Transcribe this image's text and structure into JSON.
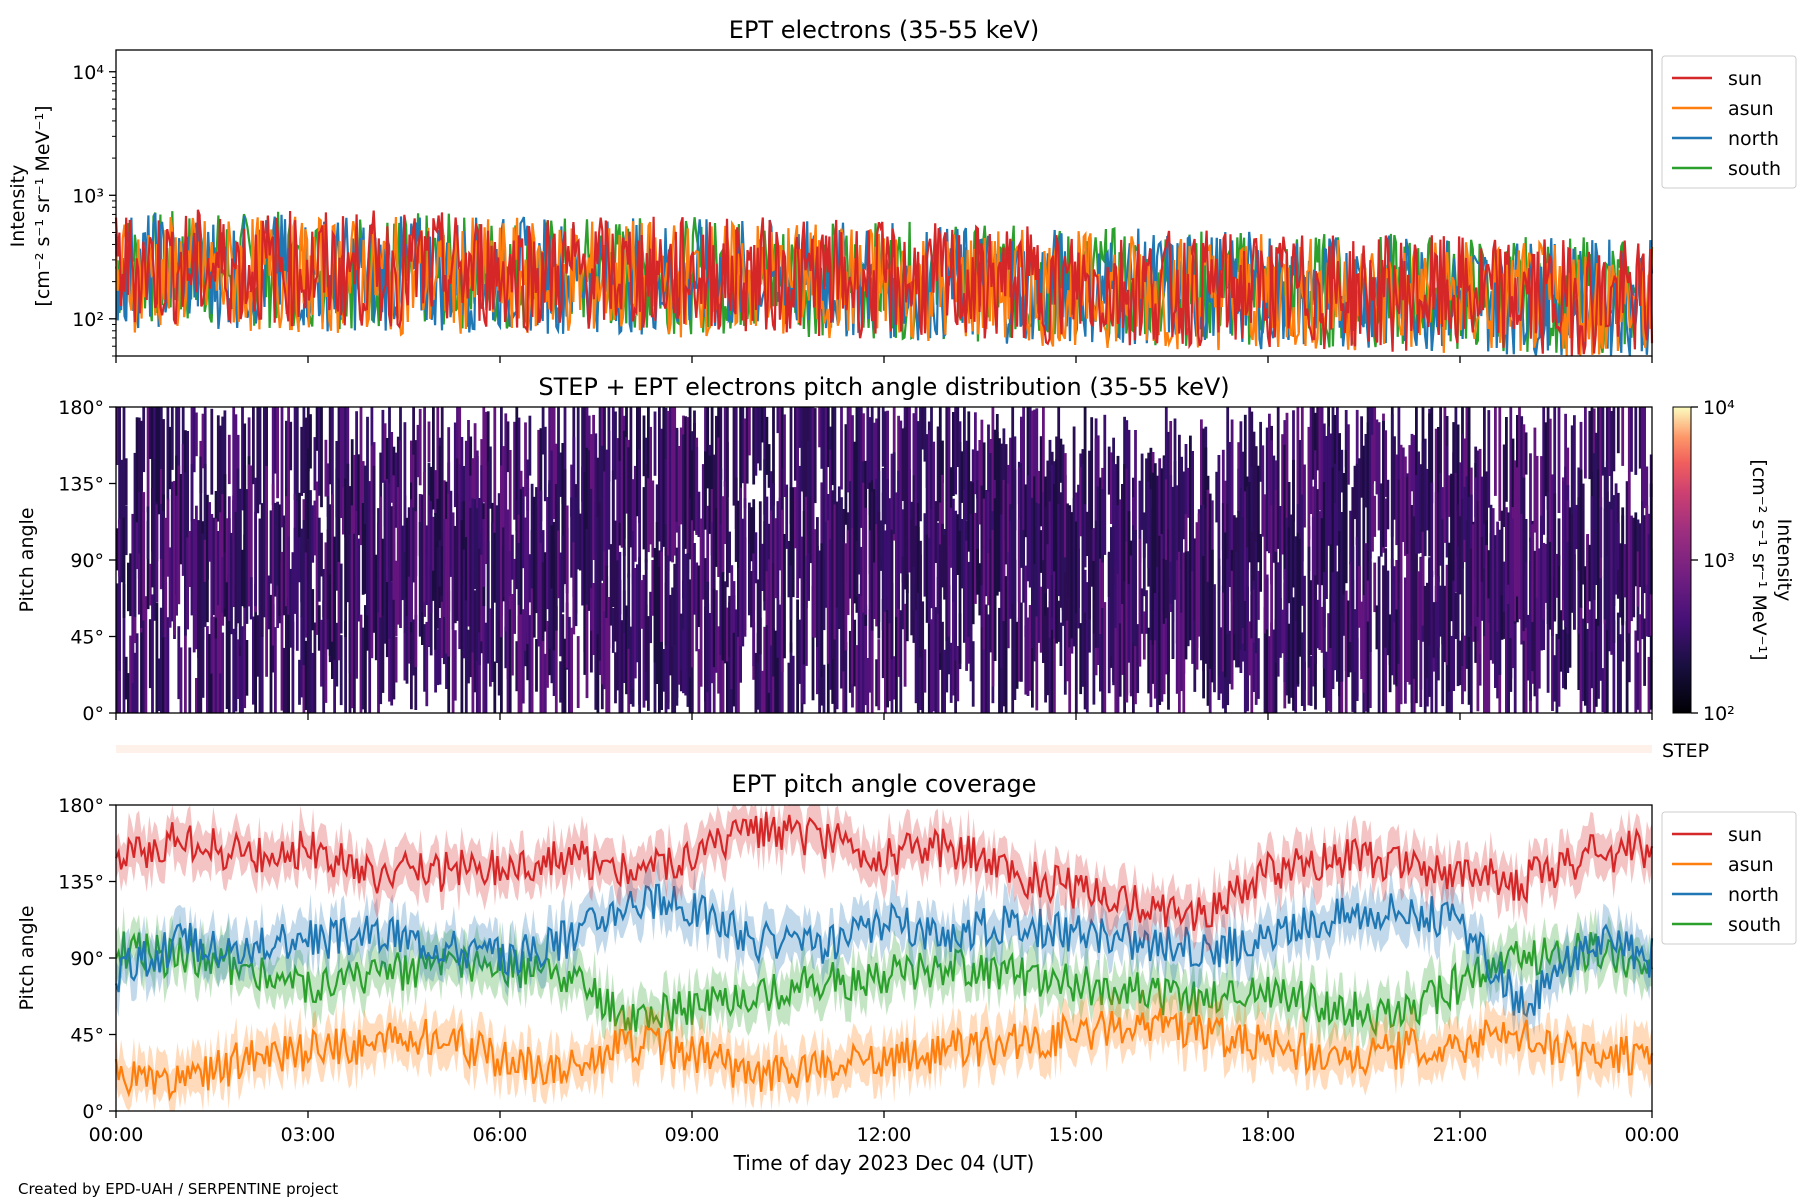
{
  "colors": {
    "sun": "#d62728",
    "asun": "#ff7f0e",
    "north": "#1f77b4",
    "south": "#2ca02c"
  },
  "legend": [
    "sun",
    "asun",
    "north",
    "south"
  ],
  "x_axis": {
    "xlabel": "Time of day 2023 Dec 04 (UT)",
    "tick_labels": [
      "00:00",
      "03:00",
      "06:00",
      "09:00",
      "12:00",
      "15:00",
      "18:00",
      "21:00",
      "00:00"
    ]
  },
  "step_label": "STEP",
  "credit": "Created by EPD-UAH / SERPENTINE project",
  "chart_data": [
    {
      "type": "line",
      "title": "EPT electrons (35-55 keV)",
      "ylabel_line1": "Intensity",
      "ylabel_line2": "[cm⁻² s⁻¹ sr⁻¹ MeV⁻¹]",
      "yscale": "log",
      "ylim": [
        50,
        15000
      ],
      "y_tick_labels": [
        "10²",
        "10³",
        "10⁴"
      ],
      "xlim_hours": [
        0,
        24
      ],
      "series": [
        {
          "name": "sun",
          "x_hours": [
            0,
            2,
            4,
            6,
            8,
            10,
            12,
            14,
            16,
            18,
            20,
            22,
            24
          ],
          "y": [
            300,
            290,
            280,
            270,
            260,
            250,
            230,
            210,
            200,
            190,
            180,
            170,
            160
          ]
        },
        {
          "name": "asun",
          "x_hours": [
            0,
            2,
            4,
            6,
            8,
            10,
            12,
            14,
            16,
            18,
            20,
            22,
            24
          ],
          "y": [
            260,
            255,
            250,
            245,
            240,
            230,
            220,
            200,
            190,
            180,
            170,
            160,
            150
          ]
        },
        {
          "name": "north",
          "x_hours": [
            0,
            2,
            4,
            6,
            8,
            10,
            12,
            14,
            16,
            18,
            20,
            22,
            24
          ],
          "y": [
            280,
            270,
            260,
            255,
            250,
            240,
            225,
            210,
            200,
            190,
            180,
            170,
            165
          ]
        },
        {
          "name": "south",
          "x_hours": [
            0,
            2,
            4,
            6,
            8,
            10,
            12,
            14,
            16,
            18,
            20,
            22,
            24
          ],
          "y": [
            290,
            280,
            275,
            265,
            255,
            245,
            230,
            215,
            205,
            195,
            185,
            175,
            170
          ]
        }
      ]
    },
    {
      "type": "heatmap",
      "title": "STEP + EPT electrons pitch angle distribution (35-55 keV)",
      "ylabel": "Pitch angle",
      "ylim": [
        0,
        180
      ],
      "y_tick_labels": [
        "0°",
        "45°",
        "90°",
        "135°",
        "180°"
      ],
      "xlim_hours": [
        0,
        24
      ],
      "colorbar": {
        "label_line1": "Intensity",
        "label_line2": "[cm⁻² s⁻¹ sr⁻¹ MeV⁻¹]",
        "scale": "log",
        "range": [
          100,
          10000
        ],
        "tick_labels": [
          "10²",
          "10³",
          "10⁴"
        ]
      },
      "typical_intensity": 250
    },
    {
      "type": "line",
      "title": "EPT pitch angle coverage",
      "ylabel": "Pitch angle",
      "ylim": [
        0,
        180
      ],
      "y_tick_labels": [
        "0°",
        "45°",
        "90°",
        "135°",
        "180°"
      ],
      "xlim_hours": [
        0,
        24
      ],
      "series": [
        {
          "name": "sun",
          "x_hours": [
            0,
            1,
            2,
            3,
            4,
            5,
            6,
            7,
            8,
            9,
            10,
            11,
            12,
            13,
            14,
            15,
            16,
            17,
            18,
            19,
            20,
            21,
            22,
            23,
            24
          ],
          "y": [
            150,
            160,
            150,
            155,
            140,
            140,
            145,
            150,
            140,
            148,
            165,
            160,
            150,
            155,
            140,
            130,
            120,
            115,
            140,
            150,
            145,
            140,
            135,
            150,
            155
          ]
        },
        {
          "name": "asun",
          "x_hours": [
            0,
            1,
            2,
            3,
            4,
            5,
            6,
            7,
            8,
            9,
            10,
            11,
            12,
            13,
            14,
            15,
            16,
            17,
            18,
            19,
            20,
            21,
            22,
            23,
            24
          ],
          "y": [
            20,
            15,
            30,
            35,
            40,
            45,
            30,
            25,
            40,
            35,
            20,
            25,
            30,
            35,
            40,
            45,
            50,
            45,
            40,
            30,
            35,
            40,
            45,
            30,
            35
          ]
        },
        {
          "name": "north",
          "x_hours": [
            0,
            1,
            2,
            3,
            4,
            5,
            6,
            7,
            8,
            9,
            10,
            11,
            12,
            13,
            14,
            15,
            16,
            17,
            18,
            19,
            20,
            21,
            22,
            23,
            24
          ],
          "y": [
            80,
            100,
            95,
            100,
            105,
            100,
            90,
            100,
            125,
            120,
            100,
            95,
            110,
            105,
            110,
            105,
            100,
            95,
            100,
            115,
            120,
            110,
            60,
            100,
            90
          ]
        },
        {
          "name": "south",
          "x_hours": [
            0,
            1,
            2,
            3,
            4,
            5,
            6,
            7,
            8,
            9,
            10,
            11,
            12,
            13,
            14,
            15,
            16,
            17,
            18,
            19,
            20,
            21,
            22,
            23,
            24
          ],
          "y": [
            95,
            90,
            85,
            75,
            80,
            85,
            85,
            80,
            55,
            60,
            70,
            75,
            80,
            85,
            80,
            75,
            70,
            65,
            70,
            60,
            55,
            75,
            90,
            95,
            85
          ]
        }
      ]
    }
  ]
}
